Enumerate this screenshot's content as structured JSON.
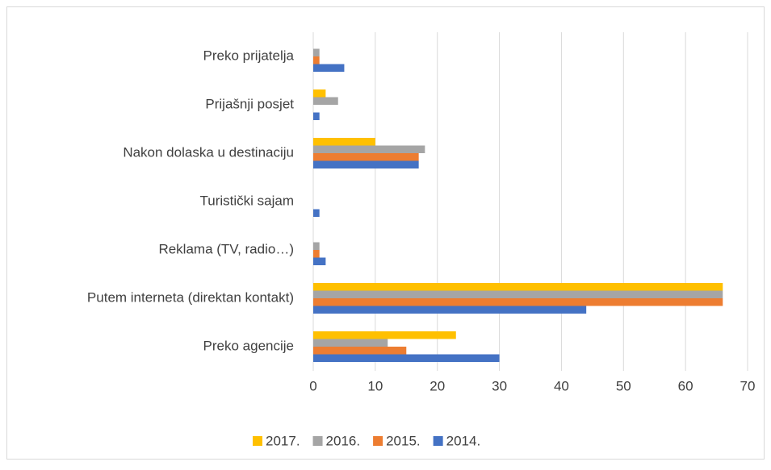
{
  "chart_data": {
    "type": "hbar",
    "categories": [
      "Preko prijatelja",
      "Prijašnji posjet",
      "Nakon dolaska u destinaciju",
      "Turistički sajam",
      "Reklama (TV, radio…)",
      "Putem interneta (direktan kontakt)",
      "Preko agencije"
    ],
    "series": [
      {
        "name": "2017.",
        "color": "#ffc000",
        "values": [
          0,
          2,
          10,
          0,
          0,
          66,
          23
        ]
      },
      {
        "name": "2016.",
        "color": "#a5a5a5",
        "values": [
          1,
          4,
          18,
          0,
          1,
          66,
          12
        ]
      },
      {
        "name": "2015.",
        "color": "#ed7d31",
        "values": [
          1,
          0,
          17,
          0,
          1,
          66,
          15
        ]
      },
      {
        "name": "2014.",
        "color": "#4472c4",
        "values": [
          5,
          1,
          17,
          1,
          2,
          44,
          30
        ]
      }
    ],
    "xlim": [
      0,
      70
    ],
    "xticks": [
      0,
      10,
      20,
      30,
      40,
      50,
      60,
      70
    ],
    "grid": true,
    "legend": "bottom"
  }
}
